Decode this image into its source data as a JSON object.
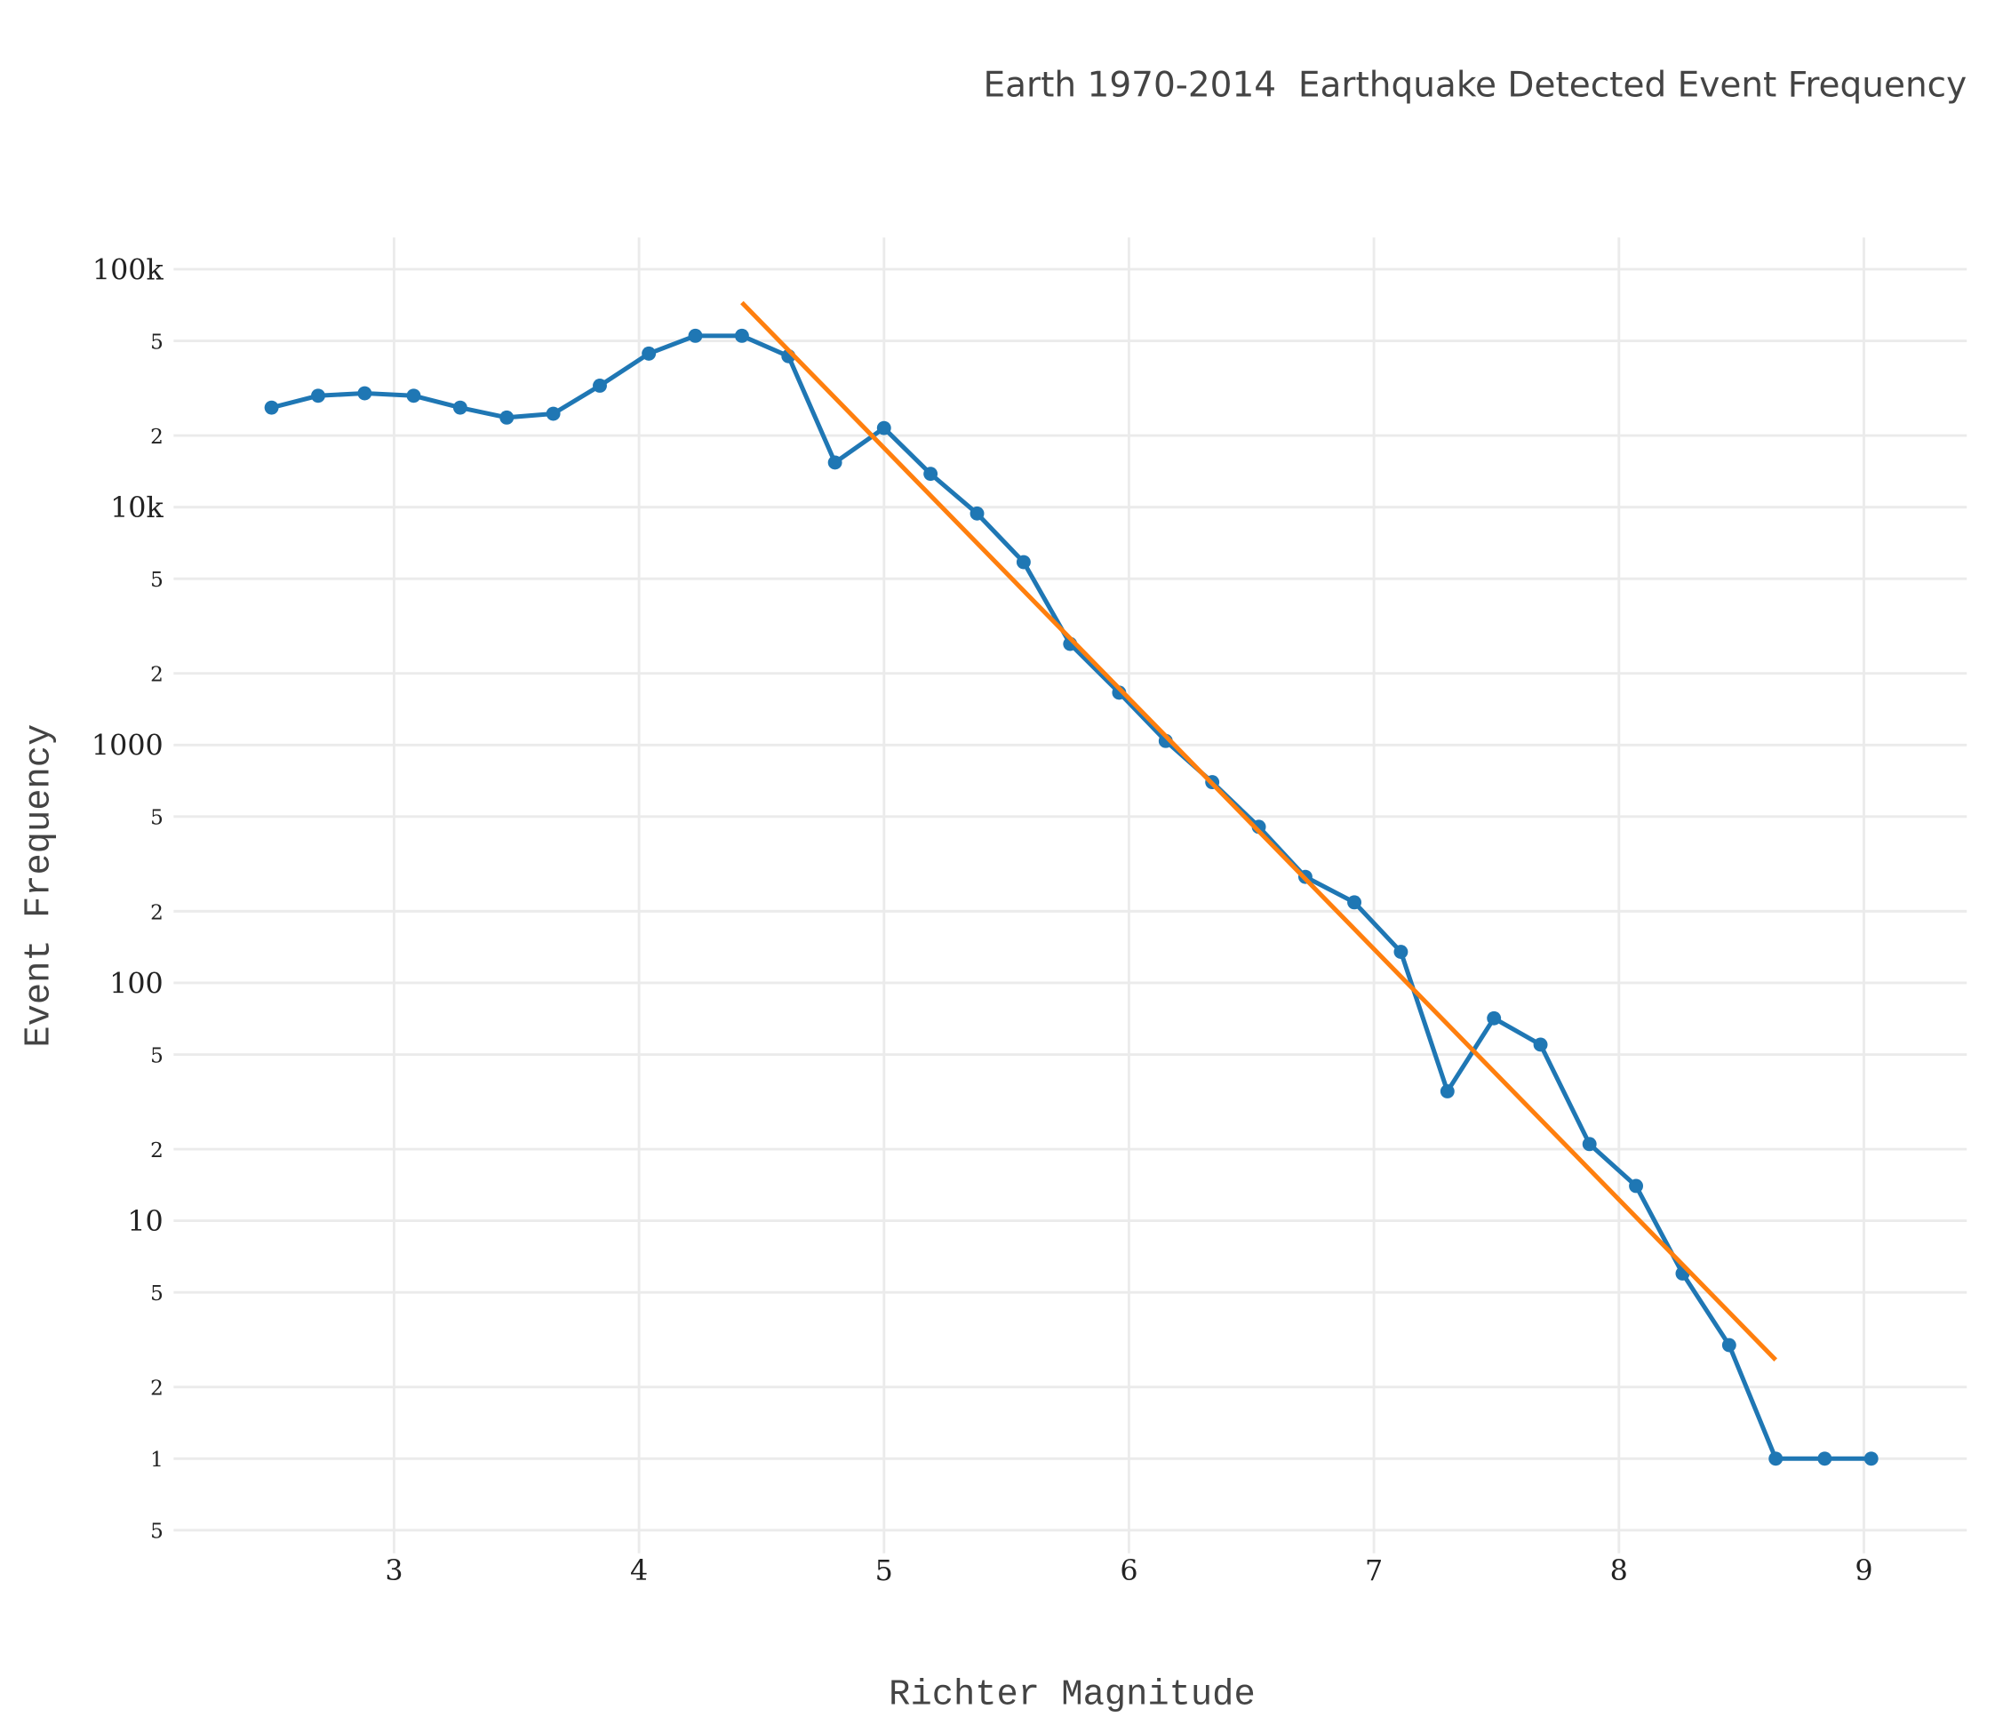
{
  "chart_data": {
    "type": "line",
    "title": "Earth 1970-2014  Earthquake Detected Event Frequency",
    "x_label": "Richter Magnitude",
    "y_label": "Event Frequency",
    "log_y": true,
    "grid": true,
    "xlim": [
      2.1,
      9.42
    ],
    "xticks": [
      3,
      4,
      5,
      6,
      7,
      8,
      9
    ],
    "ylim": [
      0.4,
      136000
    ],
    "yticks": [
      {
        "value": 100000,
        "label": "100k"
      },
      {
        "value": 50000,
        "label": "5"
      },
      {
        "value": 20000,
        "label": "2"
      },
      {
        "value": 10000,
        "label": "10k"
      },
      {
        "value": 5000,
        "label": "5"
      },
      {
        "value": 2000,
        "label": "2"
      },
      1000,
      {
        "value": 500,
        "label": "5"
      },
      {
        "value": 200,
        "label": "2"
      },
      100,
      {
        "value": 50,
        "label": "5"
      },
      {
        "value": 20,
        "label": "2"
      },
      10,
      5,
      2,
      1,
      {
        "value": 0.5,
        "label": "5"
      }
    ],
    "series": [
      {
        "color": "#1f77b4",
        "markers": true,
        "x": [
          2.5,
          2.69,
          2.88,
          3.08,
          3.27,
          3.46,
          3.65,
          3.84,
          4.04,
          4.23,
          4.42,
          4.61,
          4.8,
          5.0,
          5.19,
          5.38,
          5.57,
          5.76,
          5.96,
          6.15,
          6.34,
          6.53,
          6.72,
          6.92,
          7.11,
          7.3,
          7.49,
          7.68,
          7.88,
          8.07,
          8.26,
          8.45,
          8.64,
          8.84,
          9.03
        ],
        "values": [
          26200,
          29400,
          30100,
          29400,
          26200,
          23800,
          24700,
          32400,
          44200,
          52500,
          52500,
          43100,
          15400,
          21500,
          13800,
          9400,
          5870,
          2660,
          1660,
          1040,
          698,
          453,
          279,
          218,
          135,
          35,
          71,
          55,
          21,
          14,
          6,
          3,
          1,
          1,
          1
        ]
      },
      {
        "color": "#ff7f0e",
        "markers": false,
        "x": [
          4.42,
          8.64
        ],
        "values": [
          72400,
          2.6
        ]
      }
    ]
  }
}
